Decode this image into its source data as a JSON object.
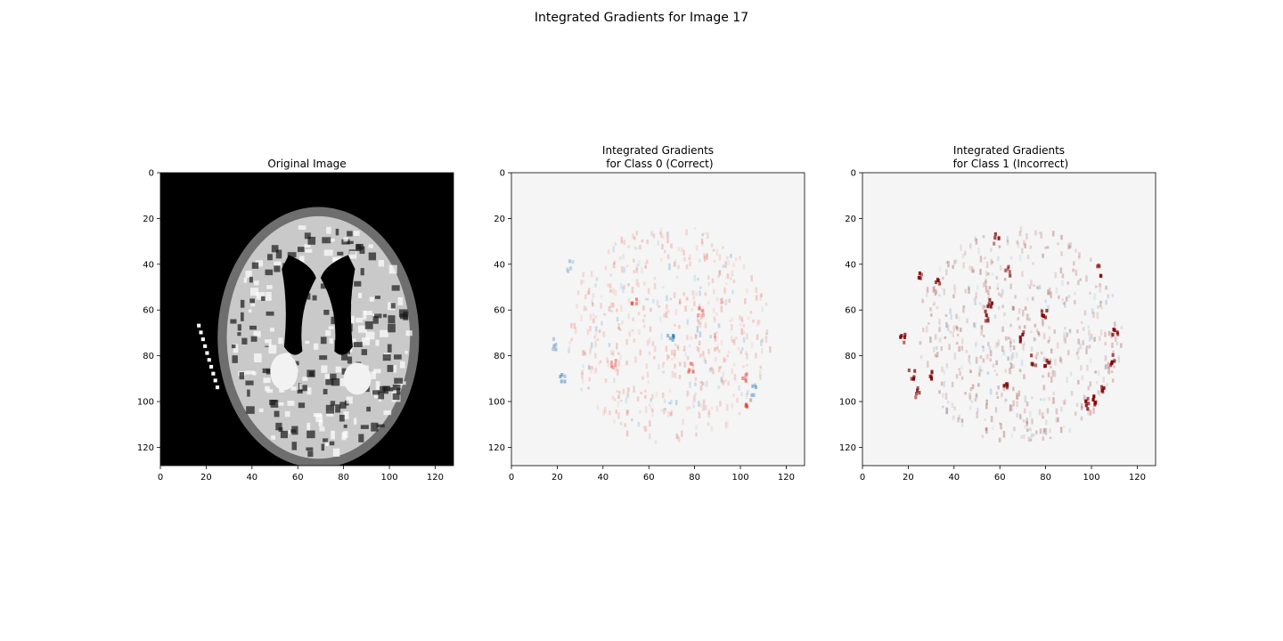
{
  "figure": {
    "suptitle": "Integrated Gradients for Image 17"
  },
  "chart_data": [
    {
      "type": "heatmap",
      "colormap": "gray",
      "title_lines": [
        "Original Image"
      ],
      "x_range": [
        0,
        128
      ],
      "y_range": [
        0,
        128
      ],
      "y_inverted": true,
      "x_ticks": [
        0,
        20,
        40,
        60,
        80,
        100,
        120
      ],
      "y_ticks": [
        0,
        20,
        40,
        60,
        80,
        100,
        120
      ],
      "colors": {
        "background": "#000000",
        "tissue": "#d9d9d9",
        "ventricle": "#000000",
        "lesion": "#f2f2f2"
      }
    },
    {
      "type": "heatmap",
      "colormap": "RdBu_r",
      "title_lines": [
        "Integrated Gradients",
        " for Class 0 (Correct)"
      ],
      "x_range": [
        0,
        128
      ],
      "y_range": [
        0,
        128
      ],
      "y_inverted": true,
      "x_ticks": [
        0,
        20,
        40,
        60,
        80,
        100,
        120
      ],
      "y_ticks": [
        0,
        20,
        40,
        60,
        80,
        100,
        120
      ],
      "colors": {
        "background": "#f5f5f5",
        "positive": "#e5483a",
        "negative": "#2f79b5"
      },
      "highlight_clusters": [
        {
          "x": 53,
          "y": 56,
          "sign": "positive",
          "strength": 0.6
        },
        {
          "x": 69,
          "y": 71,
          "sign": "negative",
          "strength": 0.8
        },
        {
          "x": 78,
          "y": 85,
          "sign": "positive",
          "strength": 0.7
        },
        {
          "x": 101,
          "y": 88,
          "sign": "positive",
          "strength": 0.7
        },
        {
          "x": 103,
          "y": 100,
          "sign": "positive",
          "strength": 0.8
        },
        {
          "x": 105,
          "y": 94,
          "sign": "negative",
          "strength": 0.5
        },
        {
          "x": 18,
          "y": 74,
          "sign": "negative",
          "strength": 0.5
        },
        {
          "x": 22,
          "y": 88,
          "sign": "negative",
          "strength": 0.6
        },
        {
          "x": 82,
          "y": 60,
          "sign": "positive",
          "strength": 0.5
        },
        {
          "x": 44,
          "y": 82,
          "sign": "positive",
          "strength": 0.5
        },
        {
          "x": 25,
          "y": 40,
          "sign": "negative",
          "strength": 0.4
        }
      ]
    },
    {
      "type": "heatmap",
      "colormap": "RdBu_r",
      "title_lines": [
        "Integrated Gradients",
        " for Class 1 (Incorrect)"
      ],
      "x_range": [
        0,
        128
      ],
      "y_range": [
        0,
        128
      ],
      "y_inverted": true,
      "x_ticks": [
        0,
        20,
        40,
        60,
        80,
        100,
        120
      ],
      "y_ticks": [
        0,
        20,
        40,
        60,
        80,
        100,
        120
      ],
      "colors": {
        "background": "#f5f5f5",
        "positive": "#800000",
        "negative": "#4a90c2"
      },
      "highlight_clusters": [
        {
          "x": 17,
          "y": 72,
          "sign": "positive",
          "strength": 1.0
        },
        {
          "x": 21,
          "y": 88,
          "sign": "positive",
          "strength": 1.0
        },
        {
          "x": 23,
          "y": 95,
          "sign": "positive",
          "strength": 0.9
        },
        {
          "x": 25,
          "y": 43,
          "sign": "positive",
          "strength": 0.9
        },
        {
          "x": 30,
          "y": 87,
          "sign": "positive",
          "strength": 0.9
        },
        {
          "x": 32,
          "y": 47,
          "sign": "positive",
          "strength": 0.8
        },
        {
          "x": 55,
          "y": 56,
          "sign": "positive",
          "strength": 1.0
        },
        {
          "x": 54,
          "y": 62,
          "sign": "positive",
          "strength": 1.0
        },
        {
          "x": 58,
          "y": 28,
          "sign": "positive",
          "strength": 0.8
        },
        {
          "x": 63,
          "y": 42,
          "sign": "positive",
          "strength": 0.8
        },
        {
          "x": 69,
          "y": 71,
          "sign": "positive",
          "strength": 1.0
        },
        {
          "x": 74,
          "y": 81,
          "sign": "positive",
          "strength": 0.9
        },
        {
          "x": 79,
          "y": 60,
          "sign": "positive",
          "strength": 1.0
        },
        {
          "x": 80,
          "y": 83,
          "sign": "positive",
          "strength": 0.9
        },
        {
          "x": 62,
          "y": 92,
          "sign": "positive",
          "strength": 0.9
        },
        {
          "x": 97,
          "y": 100,
          "sign": "positive",
          "strength": 1.0
        },
        {
          "x": 101,
          "y": 99,
          "sign": "positive",
          "strength": 1.0
        },
        {
          "x": 104,
          "y": 93,
          "sign": "positive",
          "strength": 0.9
        },
        {
          "x": 109,
          "y": 81,
          "sign": "positive",
          "strength": 1.0
        },
        {
          "x": 110,
          "y": 68,
          "sign": "positive",
          "strength": 1.0
        },
        {
          "x": 103,
          "y": 42,
          "sign": "positive",
          "strength": 0.8
        }
      ]
    }
  ]
}
